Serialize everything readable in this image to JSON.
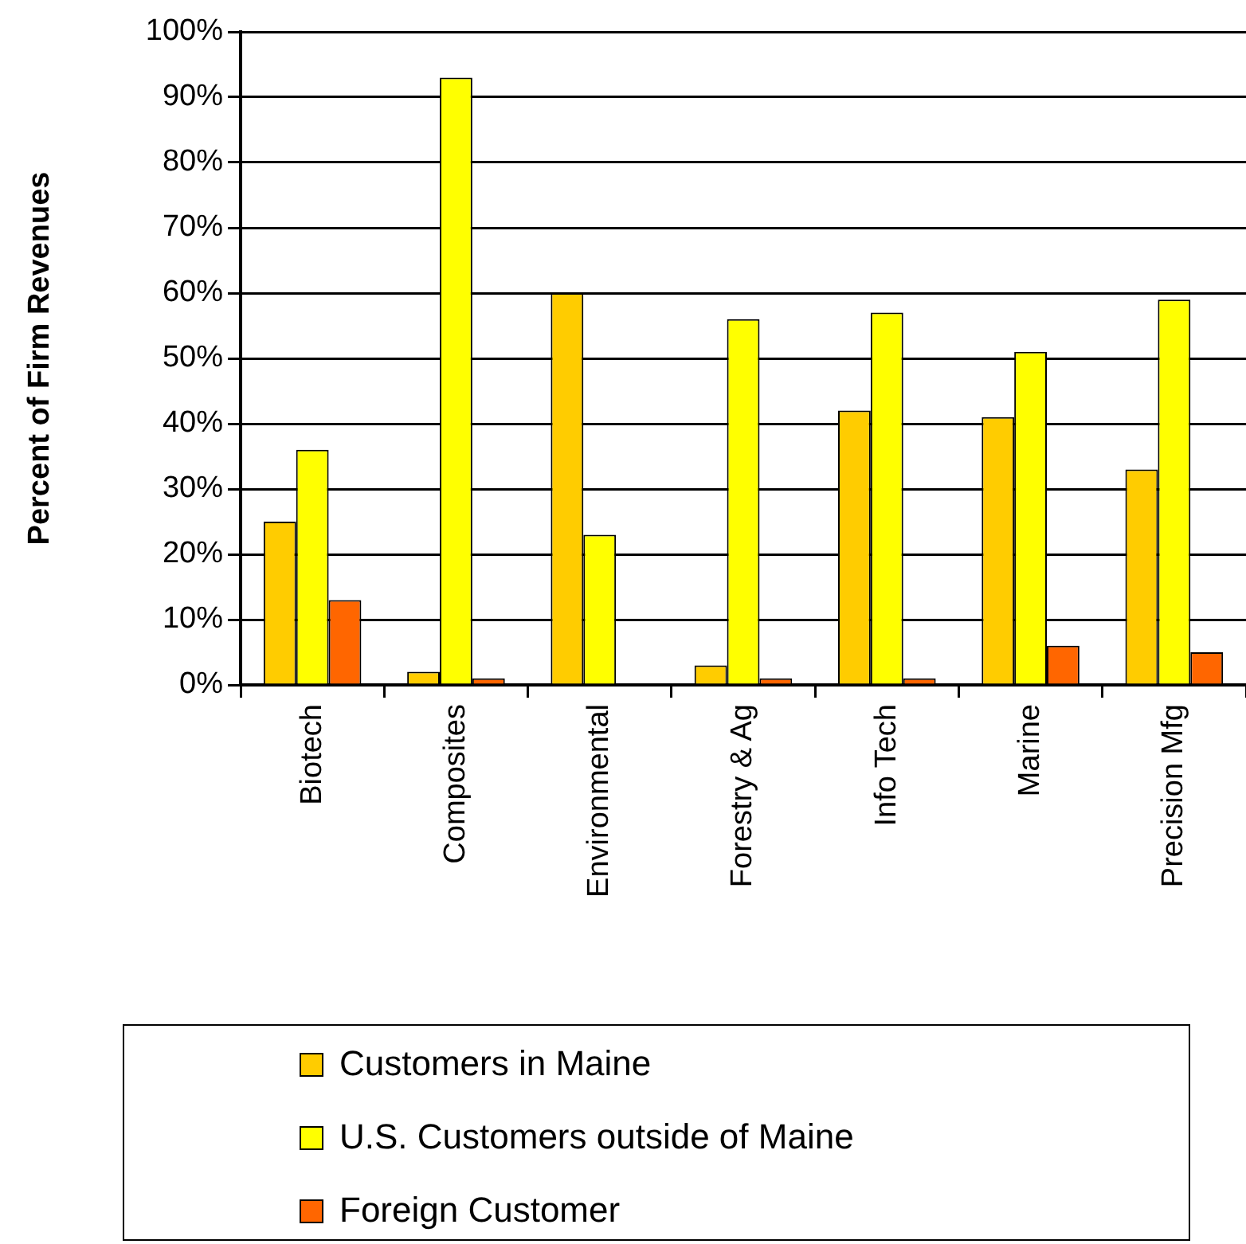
{
  "chart_data": {
    "type": "bar",
    "ylabel": "Percent of Firm Revenues",
    "categories": [
      "Biotech",
      "Composites",
      "Environmental",
      "Forestry & Ag",
      "Info Tech",
      "Marine",
      "Precision Mfg"
    ],
    "series": [
      {
        "name": "Customers in Maine",
        "color": "#ffcc00",
        "values": [
          25,
          2,
          60,
          3,
          42,
          41,
          33
        ]
      },
      {
        "name": "U.S. Customers outside of Maine",
        "color": "#ffff00",
        "values": [
          36,
          93,
          23,
          56,
          57,
          51,
          59
        ]
      },
      {
        "name": "Foreign Customer",
        "color": "#ff6600",
        "values": [
          13,
          1,
          0,
          1,
          1,
          6,
          5
        ]
      }
    ],
    "ylim": [
      0,
      100
    ],
    "yticks": [
      {
        "value": 0,
        "label": "0%"
      },
      {
        "value": 10,
        "label": "10%"
      },
      {
        "value": 20,
        "label": "20%"
      },
      {
        "value": 30,
        "label": "30%"
      },
      {
        "value": 40,
        "label": "40%"
      },
      {
        "value": 50,
        "label": "50%"
      },
      {
        "value": 60,
        "label": "60%"
      },
      {
        "value": 70,
        "label": "70%"
      },
      {
        "value": 80,
        "label": "80%"
      },
      {
        "value": 90,
        "label": "90%"
      },
      {
        "value": 100,
        "label": "100%"
      }
    ],
    "grid": "y",
    "legend": "bottom"
  }
}
